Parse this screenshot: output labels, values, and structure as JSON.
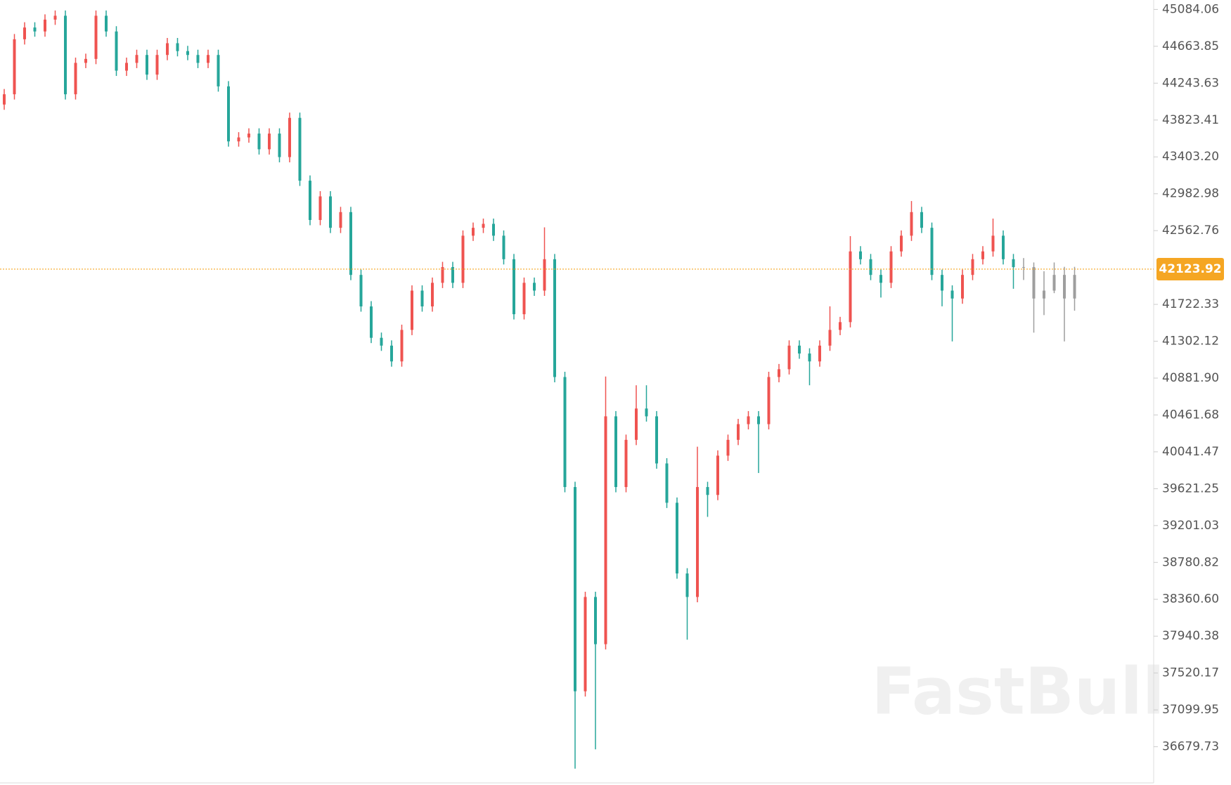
{
  "chart_data": {
    "type": "candlestick",
    "watermark": "FastBull",
    "up_color": "#ef5350",
    "down_color": "#26a69a",
    "projection_color": "#9e9e9e",
    "ylim": [
      36267.8,
      45191.5
    ],
    "yticks": [
      45084.06,
      44663.85,
      44243.63,
      43823.41,
      {
        "value": 43403.2,
        "label": "43403.20"
      },
      42982.98,
      42562.76,
      41722.33,
      41302.12,
      {
        "value": 40881.9,
        "label": "40881.90"
      },
      40461.68,
      40041.47,
      39621.25,
      39201.03,
      38780.82,
      {
        "value": 38360.6,
        "label": "38360.60"
      },
      37940.38,
      37520.17,
      37099.95,
      36679.73
    ],
    "last_price": {
      "value": 42123.92,
      "color": "#f5a623"
    },
    "open": [
      44000,
      44117,
      44744,
      44878,
      44833,
      44968,
      45012,
      44117,
      44475,
      44520,
      45012,
      44833,
      44386,
      44475,
      44565,
      44341,
      44565,
      44699,
      44609,
      44565,
      44475,
      44565,
      44207,
      43580,
      43625,
      43669,
      43490,
      43669,
      43401,
      43848,
      43132,
      42684,
      42953,
      42595,
      42774,
      42058,
      41699,
      41341,
      41252,
      41072,
      41431,
      41879,
      41699,
      41968,
      42147,
      41968,
      42505,
      42595,
      42640,
      42505,
      42237,
      41610,
      41968,
      41879,
      42237,
      40894,
      39640,
      37312,
      38387,
      37849,
      40446,
      39640,
      40178,
      40535,
      40446,
      39909,
      39461,
      38655,
      38387,
      39640,
      39550,
      39998,
      40178,
      40357,
      40446,
      40357,
      40894,
      40983,
      41252,
      41162,
      41072,
      41252,
      41431,
      41520,
      42326,
      42237,
      42058,
      41968,
      42326,
      42505,
      42774,
      42595,
      42058,
      41879,
      41789,
      42058,
      42237,
      42326,
      42505,
      42237
    ],
    "high": [
      44177,
      44804,
      44938,
      44938,
      45028,
      45072,
      45072,
      44535,
      44580,
      45072,
      45072,
      44893,
      44535,
      44625,
      44625,
      44625,
      44759,
      44759,
      44669,
      44625,
      44625,
      44625,
      44267,
      43685,
      43729,
      43729,
      43729,
      43729,
      43908,
      43908,
      43192,
      43013,
      43013,
      42834,
      42834,
      42118,
      41759,
      41401,
      41312,
      41491,
      41939,
      41939,
      42028,
      42207,
      42207,
      42565,
      42655,
      42700,
      42700,
      42565,
      42297,
      42028,
      42028,
      42600,
      42297,
      40954,
      39700,
      38447,
      38447,
      40900,
      40506,
      40238,
      40800,
      40800,
      40506,
      39969,
      39521,
      38715,
      40100,
      39700,
      40058,
      40238,
      40417,
      40506,
      40506,
      40954,
      41043,
      41312,
      41312,
      41222,
      41312,
      41700,
      41580,
      42500,
      42386,
      42297,
      42118,
      42386,
      42565,
      42900,
      42834,
      42655,
      42118,
      41939,
      42118,
      42297,
      42386,
      42700,
      42565,
      42297
    ],
    "low": [
      43940,
      44057,
      44684,
      44773,
      44773,
      44908,
      44057,
      44057,
      44415,
      44460,
      44773,
      44326,
      44326,
      44415,
      44281,
      44281,
      44505,
      44549,
      44505,
      44415,
      44415,
      44147,
      43520,
      43520,
      43565,
      43430,
      43430,
      43341,
      43341,
      43072,
      42624,
      42624,
      42535,
      42535,
      41998,
      41639,
      41281,
      41192,
      41012,
      41012,
      41371,
      41639,
      41639,
      41908,
      41908,
      41908,
      42445,
      42535,
      42445,
      42177,
      41550,
      41550,
      41819,
      41819,
      40834,
      39580,
      36430,
      37252,
      36650,
      37789,
      39580,
      39580,
      40118,
      40386,
      39849,
      39401,
      38595,
      37900,
      38327,
      39300,
      39490,
      39938,
      40118,
      40297,
      39800,
      40297,
      40834,
      40923,
      41102,
      40800,
      41012,
      41192,
      41371,
      41460,
      42177,
      41998,
      41800,
      41908,
      42266,
      42445,
      42535,
      41998,
      41700,
      41300,
      41729,
      41998,
      42177,
      42266,
      42177,
      41900
    ],
    "close": [
      44117,
      44744,
      44878,
      44833,
      44968,
      45012,
      44117,
      44475,
      44520,
      45012,
      44833,
      44386,
      44475,
      44565,
      44341,
      44565,
      44699,
      44609,
      44565,
      44475,
      44565,
      44207,
      43580,
      43625,
      43669,
      43490,
      43669,
      43401,
      43848,
      43132,
      42684,
      42953,
      42595,
      42774,
      42058,
      41699,
      41341,
      41252,
      41072,
      41431,
      41879,
      41699,
      41968,
      42147,
      41968,
      42505,
      42595,
      42640,
      42505,
      42237,
      41610,
      41968,
      41879,
      42237,
      40894,
      39640,
      37312,
      38387,
      37849,
      40446,
      39640,
      40178,
      40535,
      40446,
      39909,
      39461,
      38655,
      38387,
      39640,
      39550,
      39998,
      40178,
      40357,
      40446,
      40357,
      40894,
      40983,
      41252,
      41162,
      41072,
      41252,
      41431,
      41520,
      42326,
      42237,
      42058,
      41968,
      42326,
      42505,
      42774,
      42595,
      42058,
      41879,
      41789,
      42058,
      42237,
      42326,
      42505,
      42237,
      42147
    ],
    "projection": {
      "open": [
        42147,
        42147,
        41789,
        41879,
        42058,
        41789
      ],
      "high": [
        42250,
        42200,
        42100,
        42200,
        42150,
        42150
      ],
      "low": [
        42000,
        41400,
        41600,
        41850,
        41300,
        41650
      ],
      "close": [
        42147,
        41789,
        41879,
        42058,
        41789,
        42058
      ]
    }
  }
}
